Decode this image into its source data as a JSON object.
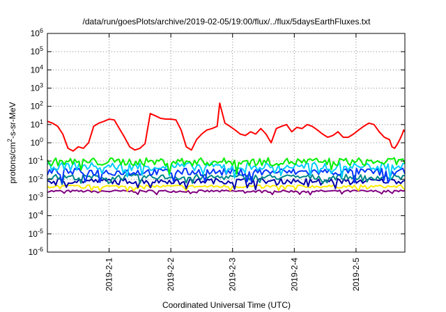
{
  "chart_data": {
    "type": "line",
    "title": "/data/run/goesPlots/archive/2019-02-05/19:00/flux/../flux/5daysEarthFluxes.txt",
    "xlabel": "Coordinated Universal Time (UTC)",
    "ylabel_parts": {
      "pre": "protons/cm",
      "sup": "2",
      "post": "-s-sr-MeV"
    },
    "x_scale": "time",
    "xlim": [
      "2019-01-31T00:00",
      "2019-02-05T19:00"
    ],
    "x_ticks": [
      "2019-2-1",
      "2019-2-2",
      "2019-2-3",
      "2019-2-4",
      "2019-2-5"
    ],
    "x_tick_dates": [
      "2019-02-01T00:00",
      "2019-02-02T00:00",
      "2019-02-03T00:00",
      "2019-02-04T00:00",
      "2019-02-05T00:00"
    ],
    "y_scale": "log",
    "ylim": [
      1e-06,
      1000000.0
    ],
    "y_tick_base": "10",
    "y_tick_exponents": [
      "-6",
      "-5",
      "-4",
      "-3",
      "-2",
      "-1",
      "0",
      "1",
      "2",
      "3",
      "4",
      "5",
      "6"
    ],
    "grid": {
      "x": "dotted",
      "y": "dotted"
    },
    "series": [
      {
        "color": "#ff0000",
        "values": [
          15,
          12,
          8,
          3,
          0.5,
          0.35,
          0.6,
          0.5,
          1.0,
          8,
          12,
          15,
          20,
          18,
          6,
          2,
          0.6,
          0.4,
          0.5,
          0.9,
          40,
          30,
          22,
          20,
          20,
          18,
          5,
          0.6,
          0.4,
          1.5,
          3,
          5,
          6,
          8,
          150,
          12,
          8,
          5,
          3,
          2.5,
          4,
          3,
          6,
          3,
          1,
          6,
          8,
          10,
          4,
          7,
          6,
          10,
          8,
          5,
          3,
          2,
          2.5,
          4,
          2,
          2,
          3,
          5,
          8,
          12,
          10,
          4,
          2,
          1.5,
          0.6,
          0.5,
          0.8,
          1.5,
          3,
          5,
          4
        ],
        "x": [
          "2019-01-31T00:00",
          "2019-01-31T02:00",
          "2019-01-31T04:00",
          "2019-01-31T06:00",
          "2019-01-31T08:00",
          "2019-01-31T10:00",
          "2019-01-31T12:00",
          "2019-01-31T14:00",
          "2019-01-31T16:00",
          "2019-01-31T18:00",
          "2019-01-31T20:00",
          "2019-01-31T22:00",
          "2019-02-01T00:00",
          "2019-02-01T02:00",
          "2019-02-01T04:00",
          "2019-02-01T06:00",
          "2019-02-01T08:00",
          "2019-02-01T10:00",
          "2019-02-01T12:00",
          "2019-02-01T14:00",
          "2019-02-01T16:00",
          "2019-02-01T18:00",
          "2019-02-01T20:00",
          "2019-02-01T22:00",
          "2019-02-02T00:00",
          "2019-02-02T02:00",
          "2019-02-02T04:00",
          "2019-02-02T06:00",
          "2019-02-02T08:00",
          "2019-02-02T10:00",
          "2019-02-02T12:00",
          "2019-02-02T14:00",
          "2019-02-02T16:00",
          "2019-02-02T18:00",
          "2019-02-02T19:00",
          "2019-02-02T21:00",
          "2019-02-02T23:00",
          "2019-02-03T01:00",
          "2019-02-03T03:00",
          "2019-02-03T05:00",
          "2019-02-03T07:00",
          "2019-02-03T09:00",
          "2019-02-03T11:00",
          "2019-02-03T13:00",
          "2019-02-03T15:00",
          "2019-02-03T17:00",
          "2019-02-03T19:00",
          "2019-02-03T21:00",
          "2019-02-03T23:00",
          "2019-02-04T01:00",
          "2019-02-04T03:00",
          "2019-02-04T05:00",
          "2019-02-04T07:00",
          "2019-02-04T09:00",
          "2019-02-04T11:00",
          "2019-02-04T13:00",
          "2019-02-04T15:00",
          "2019-02-04T17:00",
          "2019-02-04T19:00",
          "2019-02-04T21:00",
          "2019-02-04T23:00",
          "2019-02-05T01:00",
          "2019-02-05T03:00",
          "2019-02-05T05:00",
          "2019-02-05T07:00",
          "2019-02-05T09:00",
          "2019-02-05T11:00",
          "2019-02-05T13:00",
          "2019-02-05T14:00",
          "2019-02-05T15:00",
          "2019-02-05T16:00",
          "2019-02-05T17:00",
          "2019-02-05T18:00",
          "2019-02-05T18:30",
          "2019-02-05T19:00"
        ]
      },
      {
        "color": "#00ee00",
        "base": 0.09,
        "noise_decades": 0.22
      },
      {
        "color": "#00ccff",
        "base": 0.05,
        "noise_decades": 0.22
      },
      {
        "color": "#0033ff",
        "base": 0.025,
        "noise_decades": 0.2
      },
      {
        "color": "#008888",
        "base": 0.013,
        "noise_decades": 0.15
      },
      {
        "color": "#0000aa",
        "base": 0.008,
        "noise_decades": 0.15
      },
      {
        "color": "#ffee00",
        "base": 0.004,
        "noise_decades": 0.08
      },
      {
        "color": "#800080",
        "base": 0.0022,
        "noise_decades": 0.06
      }
    ]
  }
}
